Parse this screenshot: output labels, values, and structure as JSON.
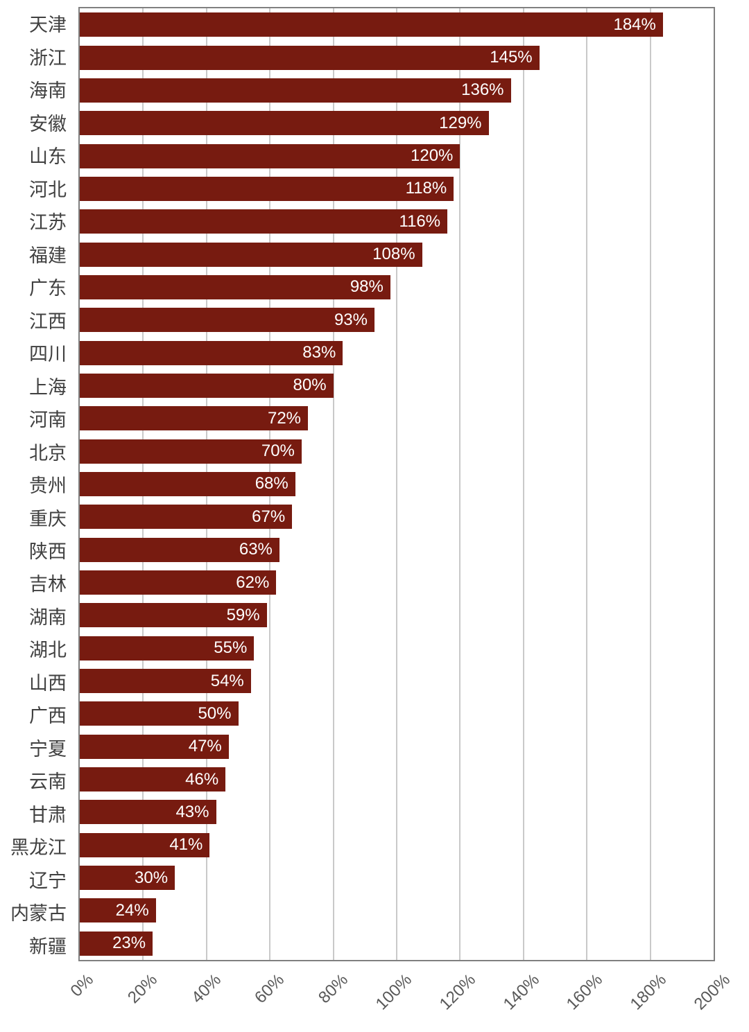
{
  "chart_data": {
    "type": "bar",
    "orientation": "horizontal",
    "title": "",
    "xlabel": "",
    "ylabel": "",
    "xlim": [
      0,
      200
    ],
    "grid": true,
    "categories": [
      "天津",
      "浙江",
      "海南",
      "安徽",
      "山东",
      "河北",
      "江苏",
      "福建",
      "广东",
      "江西",
      "四川",
      "上海",
      "河南",
      "北京",
      "贵州",
      "重庆",
      "陕西",
      "吉林",
      "湖南",
      "湖北",
      "山西",
      "广西",
      "宁夏",
      "云南",
      "甘肃",
      "黑龙江",
      "辽宁",
      "内蒙古",
      "新疆"
    ],
    "values": [
      184,
      145,
      136,
      129,
      120,
      118,
      116,
      108,
      98,
      93,
      83,
      80,
      72,
      70,
      68,
      67,
      63,
      62,
      59,
      55,
      54,
      50,
      47,
      46,
      43,
      41,
      30,
      24,
      23
    ],
    "value_labels": [
      "184%",
      "145%",
      "136%",
      "129%",
      "120%",
      "118%",
      "116%",
      "108%",
      "98%",
      "93%",
      "83%",
      "80%",
      "72%",
      "70%",
      "68%",
      "67%",
      "63%",
      "62%",
      "59%",
      "55%",
      "54%",
      "50%",
      "47%",
      "46%",
      "43%",
      "41%",
      "30%",
      "24%",
      "23%"
    ],
    "x_ticks": [
      "0%",
      "20%",
      "40%",
      "60%",
      "80%",
      "100%",
      "120%",
      "140%",
      "160%",
      "180%",
      "200%"
    ],
    "colors": {
      "bar": "#771B10",
      "value_label": "#FFFFFF",
      "category_label": "#404040",
      "tick_label": "#595959",
      "gridline": "#C9C9C9",
      "plot_border": "#808080",
      "background": "#FFFFFF"
    }
  }
}
